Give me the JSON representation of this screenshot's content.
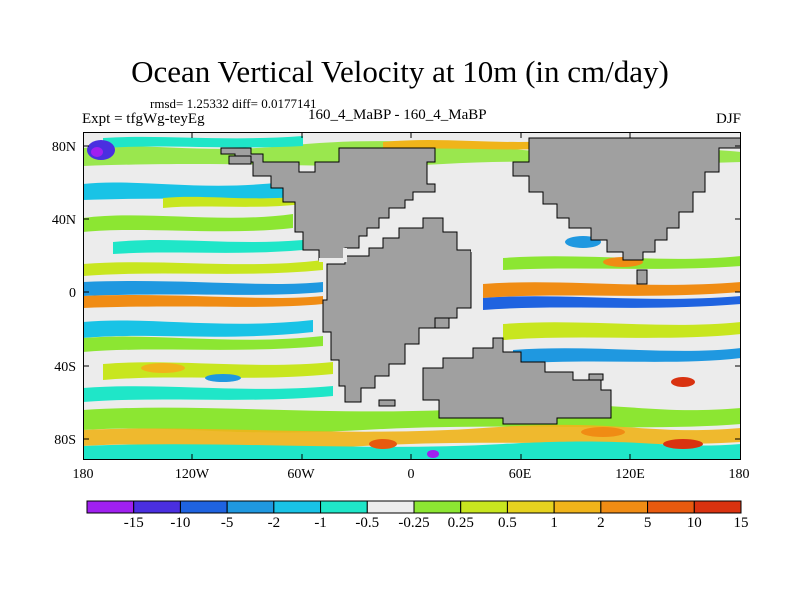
{
  "title": "Ocean Vertical Velocity at 10m (in cm/day)",
  "stats_line": "rmsd= 1.25332 diff= 0.0177141",
  "expt_label": "Expt = tfgWg-teyEg",
  "center_label": "160_4_MaBP - 160_4_MaBP",
  "season": "DJF",
  "axes": {
    "lat_labels": [
      "80N",
      "40N",
      "0",
      "40S",
      "80S"
    ],
    "lon_labels": [
      "180",
      "120W",
      "60W",
      "0",
      "60E",
      "120E",
      "180"
    ]
  },
  "colorbar": {
    "colors": [
      "#a020f0",
      "#4a2fe0",
      "#1f63e0",
      "#1f98e0",
      "#19c3e6",
      "#1fe6c8",
      "#ececec",
      "#8ce632",
      "#c8e61f",
      "#e6d21f",
      "#f0b41a",
      "#f08c14",
      "#e85a0f",
      "#d93210"
    ],
    "labels": [
      "-15",
      "-10",
      "-5",
      "-2",
      "-1",
      "-0.5",
      "-0.25",
      "0.25",
      "0.5",
      "1",
      "2",
      "5",
      "10",
      "15"
    ]
  },
  "legend_colors": {
    "land": "#a0a0a0",
    "sea_ice_white": "#ececec"
  }
}
